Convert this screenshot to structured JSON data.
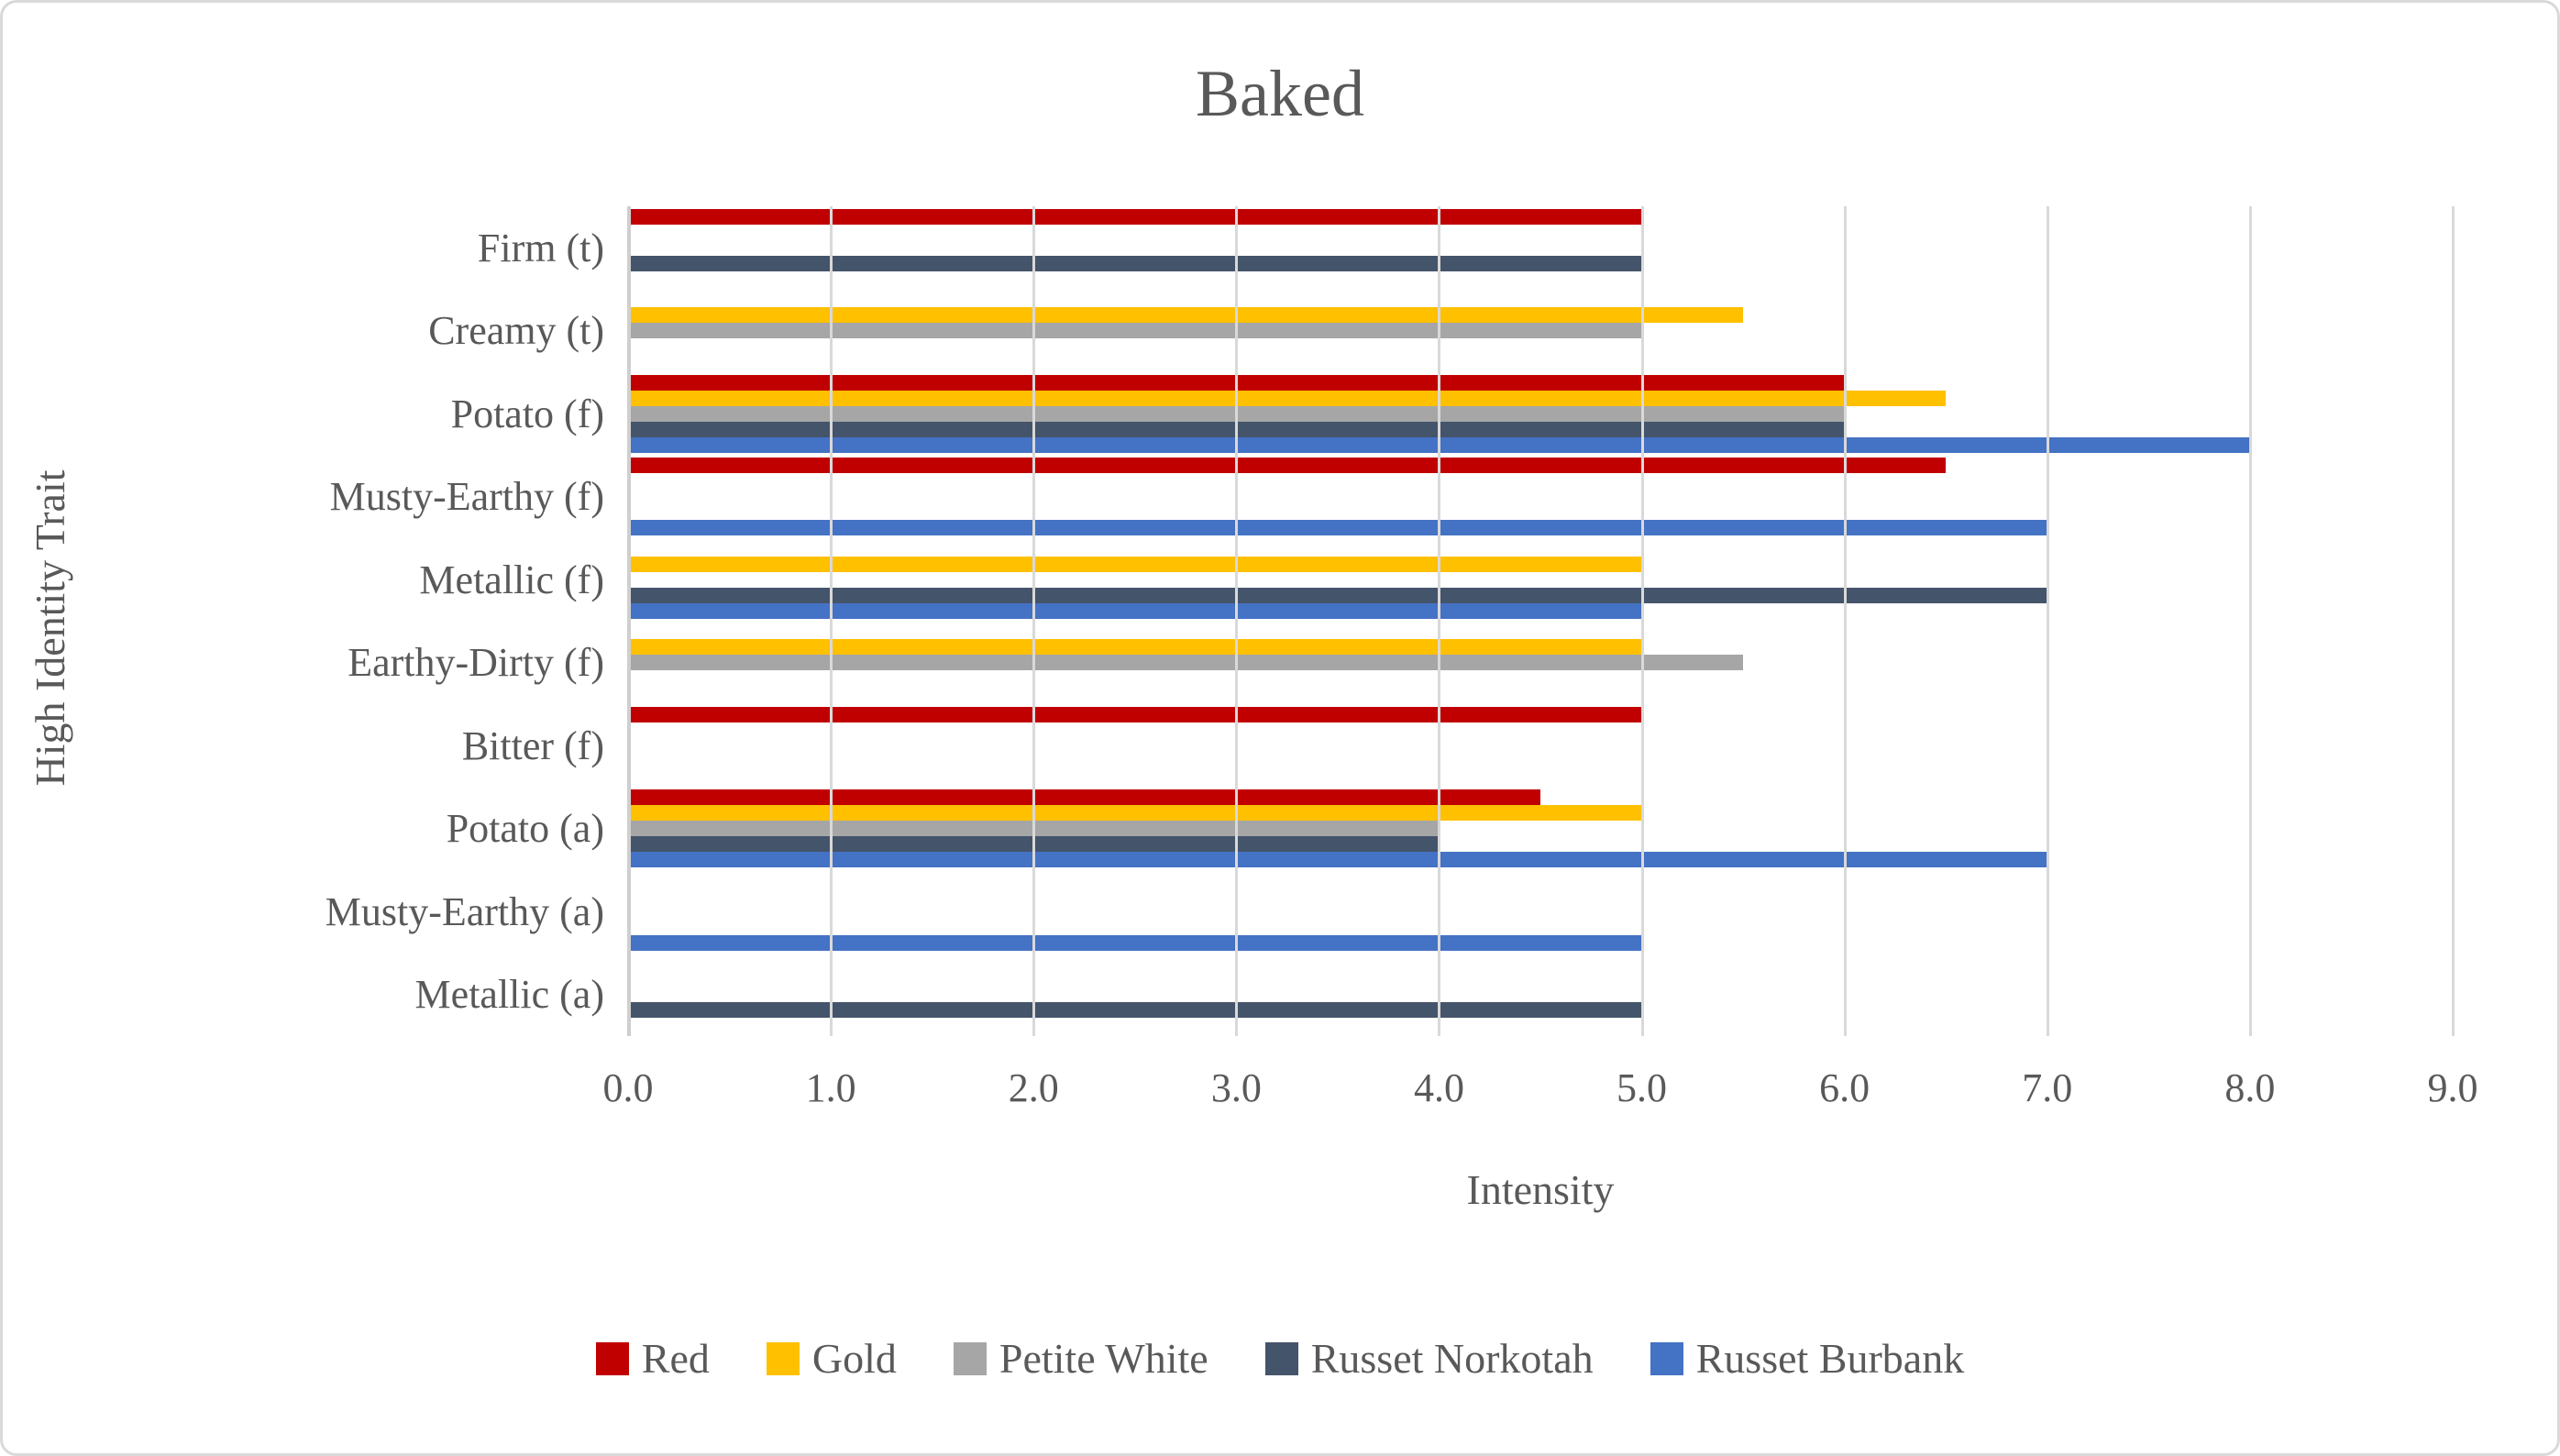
{
  "chart_data": {
    "type": "bar",
    "orientation": "horizontal",
    "title": "Baked",
    "xlabel": "Intensity",
    "ylabel": "High Identity Trait",
    "xlim": [
      0.0,
      9.0
    ],
    "xticks": [
      "0.0",
      "1.0",
      "2.0",
      "3.0",
      "4.0",
      "5.0",
      "6.0",
      "7.0",
      "8.0",
      "9.0"
    ],
    "grid": "vertical",
    "legend_position": "bottom",
    "categories": [
      "Firm (t)",
      "Creamy (t)",
      "Potato (f)",
      "Musty-Earthy (f)",
      "Metallic (f)",
      "Earthy-Dirty (f)",
      "Bitter (f)",
      "Potato (a)",
      "Musty-Earthy (a)",
      "Metallic (a)"
    ],
    "series": [
      {
        "name": "Red",
        "color": "#C00000",
        "values": [
          5.0,
          0,
          6.0,
          6.5,
          0,
          0,
          5.0,
          4.5,
          0,
          0
        ]
      },
      {
        "name": "Gold",
        "color": "#FFC000",
        "values": [
          0,
          5.5,
          6.5,
          0,
          5.0,
          5.0,
          0,
          5.0,
          0,
          0
        ]
      },
      {
        "name": "Petite White",
        "color": "#A6A6A6",
        "values": [
          0,
          5.0,
          6.0,
          0,
          0,
          5.5,
          0,
          4.0,
          0,
          0
        ]
      },
      {
        "name": "Russet Norkotah",
        "color": "#44546A",
        "values": [
          5.0,
          0,
          6.0,
          0,
          7.0,
          0,
          0,
          4.0,
          0,
          5.0
        ]
      },
      {
        "name": "Russet Burbank",
        "color": "#4472C4",
        "values": [
          0,
          0,
          8.0,
          7.0,
          5.0,
          0,
          0,
          7.0,
          5.0,
          0
        ]
      }
    ],
    "text_color": "#595959",
    "gridline_color": "#D9D9D9"
  }
}
